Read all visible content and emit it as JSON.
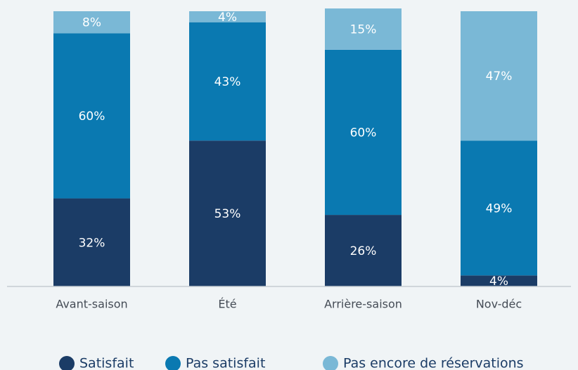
{
  "chart_data": {
    "type": "stacked_bar",
    "categories": [
      "Avant-saison",
      "Été",
      "Arrière-saison",
      "Nov-déc"
    ],
    "series": [
      {
        "name": "Satisfait",
        "color": "#1b3c66",
        "values": [
          32,
          53,
          26,
          4
        ],
        "value_labels": [
          "32%",
          "53%",
          "26%",
          "4%"
        ]
      },
      {
        "name": "Pas satisfait",
        "color": "#0a79b1",
        "values": [
          60,
          43,
          60,
          49
        ],
        "value_labels": [
          "60%",
          "43%",
          "60%",
          "49%"
        ]
      },
      {
        "name": "Pas encore de réservations",
        "color": "#7ab8d6",
        "values": [
          8,
          4,
          15,
          47
        ],
        "value_labels": [
          "8%",
          "4%",
          "15%",
          "47%"
        ]
      }
    ],
    "ylim": [
      0,
      100
    ]
  }
}
